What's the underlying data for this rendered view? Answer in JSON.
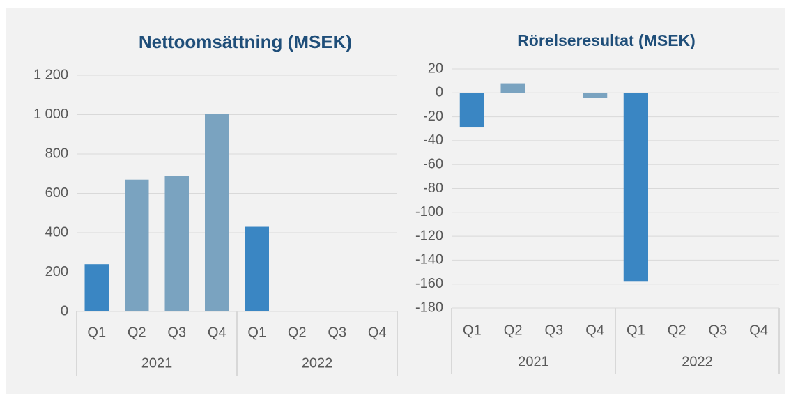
{
  "chart_data": [
    {
      "type": "bar",
      "title": "Nettoomsättning (MSEK)",
      "categories": [
        "Q1",
        "Q2",
        "Q3",
        "Q4",
        "Q1",
        "Q2",
        "Q3",
        "Q4"
      ],
      "groups": [
        "2021",
        "2022"
      ],
      "values": [
        240,
        670,
        690,
        1005,
        430,
        null,
        null,
        null
      ],
      "colors": [
        "#3a86c3",
        "#7aa3c0",
        "#7aa3c0",
        "#7aa3c0",
        "#3a86c3",
        "#7aa3c0",
        "#7aa3c0",
        "#7aa3c0"
      ],
      "ylim": [
        0,
        1200
      ],
      "yticks": [
        0,
        200,
        400,
        600,
        800,
        {
          "value": 1000,
          "label": "1 000"
        },
        {
          "value": 1200,
          "label": "1 200"
        }
      ],
      "grid": true
    },
    {
      "type": "bar",
      "title": "Rörelseresultat (MSEK)",
      "categories": [
        "Q1",
        "Q2",
        "Q3",
        "Q4",
        "Q1",
        "Q2",
        "Q3",
        "Q4"
      ],
      "groups": [
        "2021",
        "2022"
      ],
      "values": [
        -29,
        8,
        null,
        -4,
        -158,
        null,
        null,
        null
      ],
      "colors": [
        "#3a86c3",
        "#7aa3c0",
        "#7aa3c0",
        "#7aa3c0",
        "#3a86c3",
        "#7aa3c0",
        "#7aa3c0",
        "#7aa3c0"
      ],
      "ylim": [
        -180,
        20
      ],
      "yticks": [
        -180,
        -160,
        -140,
        -120,
        -100,
        -80,
        -60,
        -40,
        -20,
        0,
        20
      ],
      "grid": true
    }
  ]
}
